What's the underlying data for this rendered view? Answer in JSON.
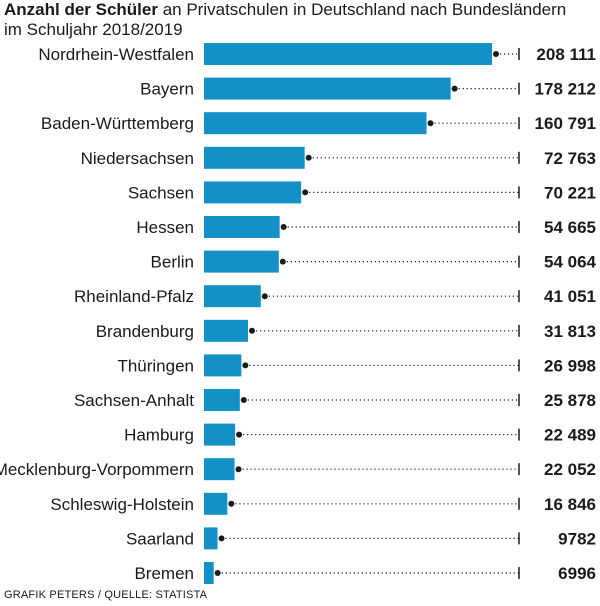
{
  "title": {
    "bold": "Anzahl der Schüler",
    "rest": " an Privatschulen in Deutschland nach Bundesländern",
    "line2": "im Schuljahr 2018/2019"
  },
  "source": "GRAFIK PETERS / QUELLE: STATISTA",
  "colors": {
    "bar": "#1391c7",
    "text": "#1a1a1a"
  },
  "chart_data": {
    "type": "bar",
    "orientation": "horizontal",
    "categories": [
      "Nordrhein-Westfalen",
      "Bayern",
      "Baden-Württemberg",
      "Niedersachsen",
      "Sachsen",
      "Hessen",
      "Berlin",
      "Rheinland-Pfalz",
      "Brandenburg",
      "Thüringen",
      "Sachsen-Anhalt",
      "Hamburg",
      "Mecklenburg-Vorpommern",
      "Schleswig-Holstein",
      "Saarland",
      "Bremen"
    ],
    "values": [
      208111,
      178212,
      160791,
      72763,
      70221,
      54665,
      54064,
      41051,
      31813,
      26998,
      25878,
      22489,
      22052,
      16846,
      9782,
      6996
    ],
    "value_labels": [
      "208 111",
      "178 212",
      "160 791",
      "72 763",
      "70 221",
      "54 665",
      "54 064",
      "41 051",
      "31 813",
      "26 998",
      "25 878",
      "22 489",
      "22 052",
      "16 846",
      "9782",
      "6996"
    ],
    "xlim": [
      0,
      208111
    ],
    "grid": false,
    "legend": "none"
  }
}
